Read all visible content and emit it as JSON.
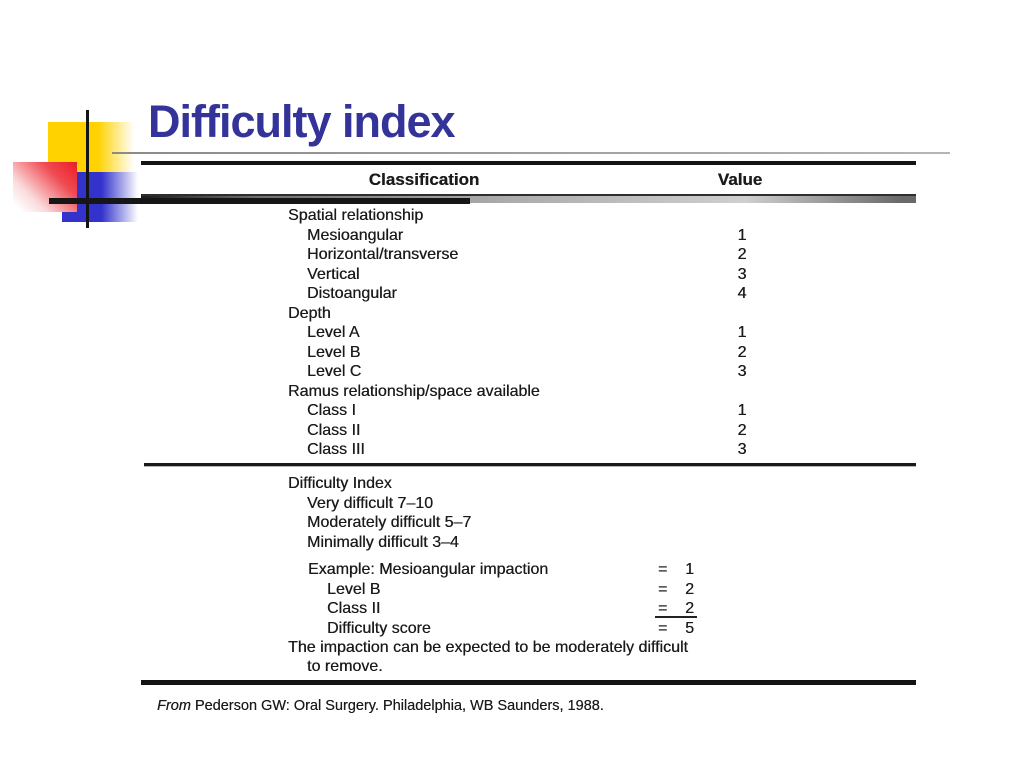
{
  "slide": {
    "title": "Difficulty index"
  },
  "colors": {
    "title_blue": "#333399",
    "accent_yellow": "#ffd200",
    "accent_blue": "#3333cc",
    "accent_red": "#ee1c25",
    "table_ink": "#1b1b1b"
  },
  "table": {
    "header": {
      "classification": "Classification",
      "value": "Value"
    },
    "sections": [
      {
        "header": "Spatial relationship",
        "rows": [
          {
            "label": "Mesioangular",
            "value": "1"
          },
          {
            "label": "Horizontal/transverse",
            "value": "2"
          },
          {
            "label": "Vertical",
            "value": "3"
          },
          {
            "label": "Distoangular",
            "value": "4"
          }
        ]
      },
      {
        "header": "Depth",
        "rows": [
          {
            "label": "Level A",
            "value": "1"
          },
          {
            "label": "Level B",
            "value": "2"
          },
          {
            "label": "Level C",
            "value": "3"
          }
        ]
      },
      {
        "header": "Ramus relationship/space available",
        "rows": [
          {
            "label": "Class I",
            "value": "1"
          },
          {
            "label": "Class II",
            "value": "2"
          },
          {
            "label": "Class III",
            "value": "3"
          }
        ]
      }
    ],
    "difficulty_index": {
      "header": "Difficulty Index",
      "ranges": [
        "Very difficult 7–10",
        "Moderately difficult 5–7",
        "Minimally difficult 3–4"
      ]
    },
    "example": {
      "rows": [
        {
          "label": "Example: Mesioangular impaction",
          "sign": "=",
          "num": "1"
        },
        {
          "label": "Level B",
          "sign": "=",
          "num": "2"
        },
        {
          "label": "Class II",
          "sign": "=",
          "num": "2"
        },
        {
          "label": "Difficulty score",
          "sign": "=",
          "num": "5"
        }
      ],
      "note1": "The impaction can be expected to be moderately difficult",
      "note2": "to remove."
    },
    "source": {
      "from": "From",
      "citation": " Pederson GW: Oral Surgery. Philadelphia, WB Saunders, 1988."
    }
  }
}
